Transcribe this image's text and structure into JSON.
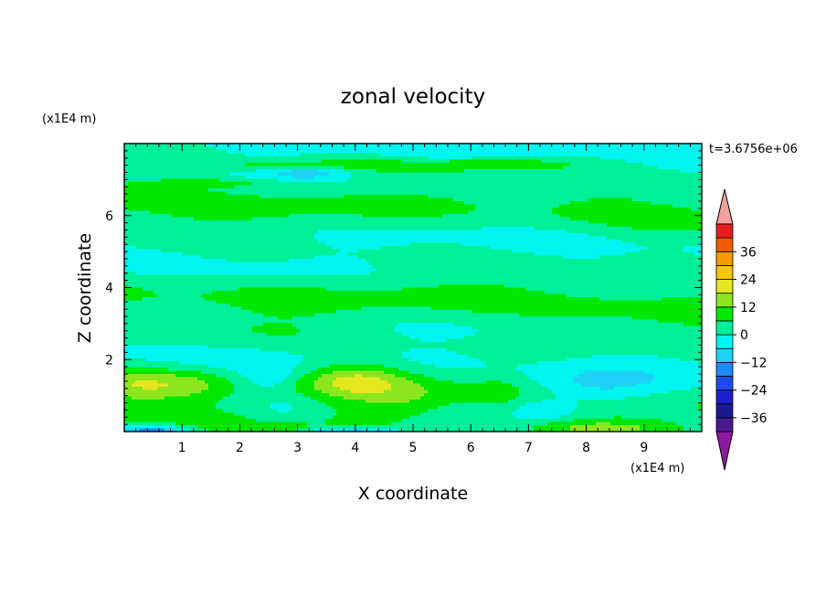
{
  "chart_data": {
    "type": "heatmap",
    "title": "zonal velocity",
    "xlabel": "X coordinate",
    "ylabel": "Z coordinate",
    "x_unit": "(x1E4 m)",
    "y_unit": "(x1E4 m)",
    "time_label": "t=3.6756e+06",
    "xlim": [
      0,
      10
    ],
    "ylim": [
      0,
      8
    ],
    "x_ticks": [
      1,
      2,
      3,
      4,
      5,
      6,
      7,
      8,
      9
    ],
    "y_ticks": [
      2,
      4,
      6
    ],
    "colorbar": {
      "levels": [
        -42,
        -36,
        -30,
        -24,
        -18,
        -12,
        -6,
        0,
        6,
        12,
        18,
        24,
        30,
        36,
        42
      ],
      "labels": [
        -36,
        -24,
        -12,
        0,
        12,
        24,
        36
      ],
      "colors": [
        "#4a1a8c",
        "#1a1a8c",
        "#1e1ed2",
        "#1e4cf0",
        "#1e8cf5",
        "#1ed2f5",
        "#00f5f0",
        "#00f09a",
        "#00e800",
        "#8ce61e",
        "#e6e61e",
        "#f5c800",
        "#f59a00",
        "#f55a00",
        "#e61e1e"
      ],
      "under_color": "#8c1aa0",
      "over_color": "#f5a0a0"
    },
    "field_features": [
      {
        "x": 0.1,
        "z": 1.3,
        "amp": 9,
        "sx": 0.8,
        "sz": 0.45
      },
      {
        "x": 1.1,
        "z": 1.3,
        "amp": 10,
        "sx": 0.9,
        "sz": 0.45
      },
      {
        "x": 4.0,
        "z": 1.45,
        "amp": 15,
        "sx": 0.9,
        "sz": 0.5
      },
      {
        "x": 4.9,
        "z": 0.9,
        "amp": 4,
        "sx": 0.7,
        "sz": 0.5
      },
      {
        "x": 6.5,
        "z": 1.1,
        "amp": 4,
        "sx": 0.4,
        "sz": 0.4
      },
      {
        "x": 2.5,
        "z": 1.5,
        "amp": -7,
        "sx": 0.5,
        "sz": 0.35
      },
      {
        "x": 2.8,
        "z": 0.6,
        "amp": -5,
        "sx": 0.6,
        "sz": 0.4
      },
      {
        "x": 8.1,
        "z": 1.2,
        "amp": -12,
        "sx": 1.2,
        "sz": 0.55
      },
      {
        "x": 7.3,
        "z": 0.6,
        "amp": -8,
        "sx": 0.6,
        "sz": 0.3
      },
      {
        "x": 0.5,
        "z": 0.0,
        "amp": -22,
        "sx": 0.6,
        "sz": 0.18
      },
      {
        "x": 4.0,
        "z": 0.0,
        "amp": -14,
        "sx": 0.8,
        "sz": 0.12
      },
      {
        "x": 8.2,
        "z": 0.1,
        "amp": 10,
        "sx": 1.2,
        "sz": 0.22
      },
      {
        "x": 2.7,
        "z": 0.1,
        "amp": 7,
        "sx": 0.4,
        "sz": 0.15
      },
      {
        "x": 3.0,
        "z": 7.4,
        "amp": 9,
        "sx": 1.5,
        "sz": 0.15
      },
      {
        "x": 6.5,
        "z": 7.45,
        "amp": 7,
        "sx": 1.5,
        "sz": 0.14
      },
      {
        "x": 1.5,
        "z": 6.9,
        "amp": 8,
        "sx": 1.2,
        "sz": 0.12
      },
      {
        "x": 3.2,
        "z": 7.2,
        "amp": -12,
        "sx": 0.7,
        "sz": 0.18
      },
      {
        "x": 5.0,
        "z": 6.85,
        "amp": -6,
        "sx": 1.5,
        "sz": 0.22
      },
      {
        "x": 8.5,
        "z": 7.0,
        "amp": -4,
        "sx": 1.2,
        "sz": 0.2
      },
      {
        "x": 5.5,
        "z": 7.7,
        "amp": -5,
        "sx": 1.0,
        "sz": 0.15
      }
    ]
  }
}
